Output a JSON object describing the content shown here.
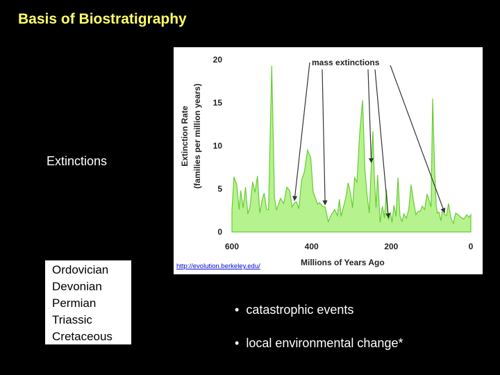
{
  "slide": {
    "title": "Basis of Biostratigraphy",
    "side_label": "Extinctions",
    "periods": [
      "Ordovician",
      "Devonian",
      "Permian",
      "Triassic",
      "Cretaceous"
    ],
    "bullets": [
      "catastrophic events",
      "local environmental change*"
    ],
    "bullet_char": "•"
  },
  "chart_data": {
    "type": "area",
    "ylabel_lines": [
      "Extinction Rate",
      "(families per million years)"
    ],
    "xlabel": "Millions of Years Ago",
    "annotation": "mass extinctions",
    "source": "http://evolution.berkeley.edu/",
    "xlim": [
      600,
      0
    ],
    "ylim": [
      0,
      20
    ],
    "x_ticks": [
      600,
      400,
      200,
      0
    ],
    "y_ticks": [
      0,
      5,
      10,
      15,
      20
    ],
    "fill_color": "#b6f28e",
    "line_color": "#66cc33",
    "series": [
      {
        "x": [
          600,
          595,
          588,
          582,
          578,
          572,
          566,
          560,
          555,
          548,
          542,
          536,
          530,
          524,
          519,
          513,
          508,
          500,
          493,
          488,
          483,
          478,
          470,
          462,
          455,
          449,
          443,
          438,
          432,
          425,
          418,
          410,
          402,
          396,
          390,
          385,
          380,
          373,
          366,
          358,
          350,
          342,
          335,
          330,
          326,
          320,
          314,
          308,
          302,
          297,
          292,
          286,
          279,
          272,
          266,
          261,
          255,
          250,
          246,
          243,
          238,
          234,
          228,
          222,
          217,
          212,
          207,
          202,
          198,
          193,
          188,
          183,
          178,
          173,
          168,
          162,
          156,
          150,
          144,
          138,
          132,
          127,
          122,
          116,
          110,
          105,
          100,
          96,
          91,
          87,
          84,
          80,
          75,
          71,
          66,
          61,
          56,
          50,
          44,
          38,
          32,
          25,
          18,
          10,
          4,
          0
        ],
        "values": [
          2.5,
          6.4,
          5.5,
          2.6,
          4.8,
          2.8,
          5.2,
          2.1,
          2.8,
          5.8,
          4.6,
          6.5,
          2.2,
          3.8,
          4.5,
          2.6,
          2.6,
          19.3,
          3.9,
          2.6,
          3.2,
          3.9,
          3.3,
          5.2,
          4.8,
          2.9,
          3.4,
          3.5,
          2.7,
          6.0,
          7.0,
          9.5,
          8.6,
          4.6,
          3.9,
          3.2,
          3.4,
          3.0,
          2.9,
          1.2,
          2.0,
          2.6,
          1.9,
          3.8,
          1.8,
          2.9,
          4.0,
          5.7,
          4.4,
          2.8,
          6.3,
          5.8,
          11.5,
          15.3,
          7.2,
          4.4,
          2.2,
          7.8,
          11.7,
          7.0,
          2.8,
          6.6,
          1.1,
          3.0,
          1.6,
          4.9,
          1.4,
          2.3,
          1.1,
          3.1,
          1.8,
          6.3,
          1.9,
          1.2,
          2.1,
          1.6,
          2.6,
          5.5,
          3.6,
          2.0,
          2.4,
          2.4,
          3.0,
          2.6,
          4.4,
          3.7,
          2.9,
          15.5,
          7.4,
          3.1,
          2.2,
          2.3,
          1.3,
          2.7,
          2.0,
          1.9,
          3.3,
          1.6,
          1.0,
          2.2,
          2.0,
          1.7,
          1.5,
          2.0,
          1.7,
          2.0
        ]
      }
    ],
    "mass_extinctions_at": [
      443,
      365,
      251,
      205,
      66
    ]
  }
}
